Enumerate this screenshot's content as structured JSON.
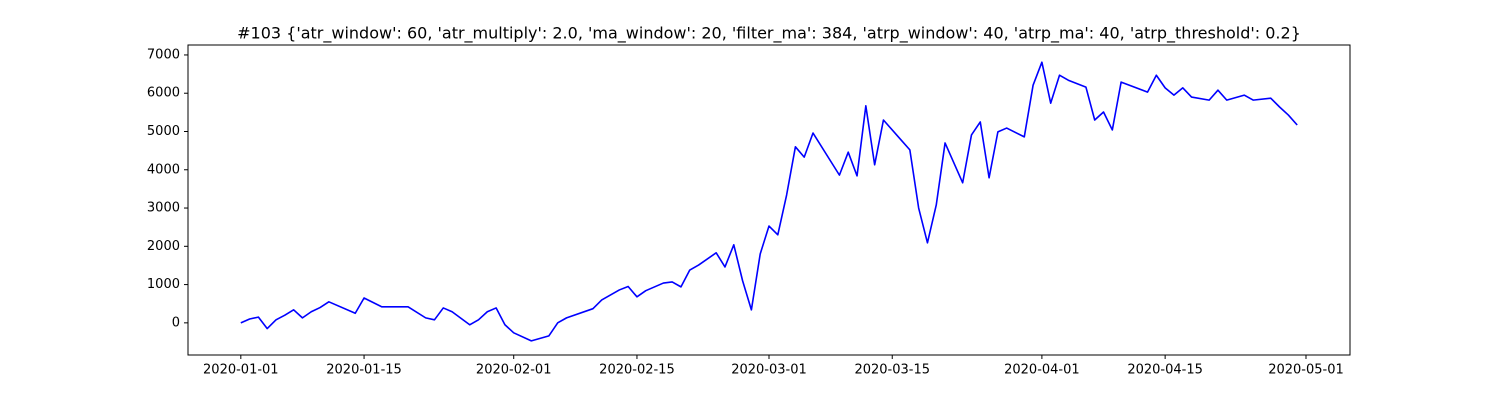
{
  "chart_data": {
    "type": "line",
    "title": "#103 {'atr_window': 60, 'atr_multiply': 2.0, 'ma_window': 20, 'filter_ma': 384, 'atrp_window': 40, 'atrp_ma': 40, 'atrp_threshold': 0.2}",
    "color": "#0000ff",
    "x": [
      "2020-01-01",
      "2020-01-02",
      "2020-01-03",
      "2020-01-04",
      "2020-01-05",
      "2020-01-06",
      "2020-01-07",
      "2020-01-08",
      "2020-01-09",
      "2020-01-10",
      "2020-01-11",
      "2020-01-14",
      "2020-01-15",
      "2020-01-17",
      "2020-01-20",
      "2020-01-22",
      "2020-01-23",
      "2020-01-24",
      "2020-01-25",
      "2020-01-27",
      "2020-01-28",
      "2020-01-29",
      "2020-01-30",
      "2020-01-31",
      "2020-02-01",
      "2020-02-03",
      "2020-02-05",
      "2020-02-06",
      "2020-02-07",
      "2020-02-10",
      "2020-02-11",
      "2020-02-13",
      "2020-02-14",
      "2020-02-15",
      "2020-02-16",
      "2020-02-18",
      "2020-02-19",
      "2020-02-20",
      "2020-02-21",
      "2020-02-22",
      "2020-02-24",
      "2020-02-25",
      "2020-02-26",
      "2020-02-27",
      "2020-02-28",
      "2020-02-29",
      "2020-03-01",
      "2020-03-02",
      "2020-03-03",
      "2020-03-04",
      "2020-03-05",
      "2020-03-06",
      "2020-03-09",
      "2020-03-10",
      "2020-03-11",
      "2020-03-12",
      "2020-03-13",
      "2020-03-14",
      "2020-03-16",
      "2020-03-17",
      "2020-03-18",
      "2020-03-19",
      "2020-03-20",
      "2020-03-21",
      "2020-03-23",
      "2020-03-24",
      "2020-03-25",
      "2020-03-26",
      "2020-03-27",
      "2020-03-28",
      "2020-03-30",
      "2020-03-31",
      "2020-04-01",
      "2020-04-02",
      "2020-04-03",
      "2020-04-04",
      "2020-04-06",
      "2020-04-07",
      "2020-04-08",
      "2020-04-09",
      "2020-04-10",
      "2020-04-13",
      "2020-04-14",
      "2020-04-15",
      "2020-04-16",
      "2020-04-17",
      "2020-04-18",
      "2020-04-20",
      "2020-04-21",
      "2020-04-22",
      "2020-04-24",
      "2020-04-25",
      "2020-04-27",
      "2020-04-28",
      "2020-04-29",
      "2020-04-30"
    ],
    "values": [
      0,
      100,
      150,
      -150,
      80,
      200,
      340,
      130,
      290,
      400,
      550,
      250,
      650,
      420,
      420,
      130,
      80,
      390,
      290,
      -50,
      80,
      290,
      390,
      -50,
      -260,
      -470,
      -340,
      0,
      130,
      370,
      600,
      860,
      950,
      680,
      840,
      1040,
      1070,
      940,
      1380,
      1510,
      1830,
      1460,
      2040,
      1100,
      340,
      1800,
      2530,
      2300,
      3340,
      4600,
      4330,
      4960,
      3860,
      4460,
      3840,
      5670,
      4130,
      5300,
      4780,
      4520,
      3000,
      2090,
      3080,
      4700,
      3660,
      4910,
      5250,
      3790,
      4990,
      5090,
      4860,
      6210,
      6810,
      5740,
      6470,
      6340,
      6160,
      5300,
      5510,
      5040,
      6290,
      6030,
      6470,
      6140,
      5950,
      6140,
      5900,
      5820,
      6080,
      5820,
      5950,
      5820,
      5870,
      5640,
      5430,
      5170
    ],
    "xlim": [
      "2019-12-26",
      "2020-05-06"
    ],
    "xticks": [
      "2020-01-01",
      "2020-01-15",
      "2020-02-01",
      "2020-02-15",
      "2020-03-01",
      "2020-03-15",
      "2020-04-01",
      "2020-04-15",
      "2020-05-01"
    ],
    "ylim": [
      -840,
      7260
    ],
    "yticks": [
      0,
      1000,
      2000,
      3000,
      4000,
      5000,
      6000,
      7000
    ]
  }
}
